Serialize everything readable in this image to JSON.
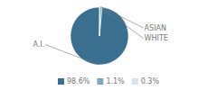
{
  "chart_data": {
    "type": "pie",
    "categories": [
      "A.I.",
      "ASIAN",
      "WHITE"
    ],
    "values": [
      98.6,
      1.1,
      0.3
    ],
    "value_labels": [
      "98.6%",
      "1.1%",
      "0.3%"
    ],
    "colors": [
      "#3a6f8f",
      "#7fa8be",
      "#d4e3ec"
    ],
    "legend": "bottom"
  }
}
